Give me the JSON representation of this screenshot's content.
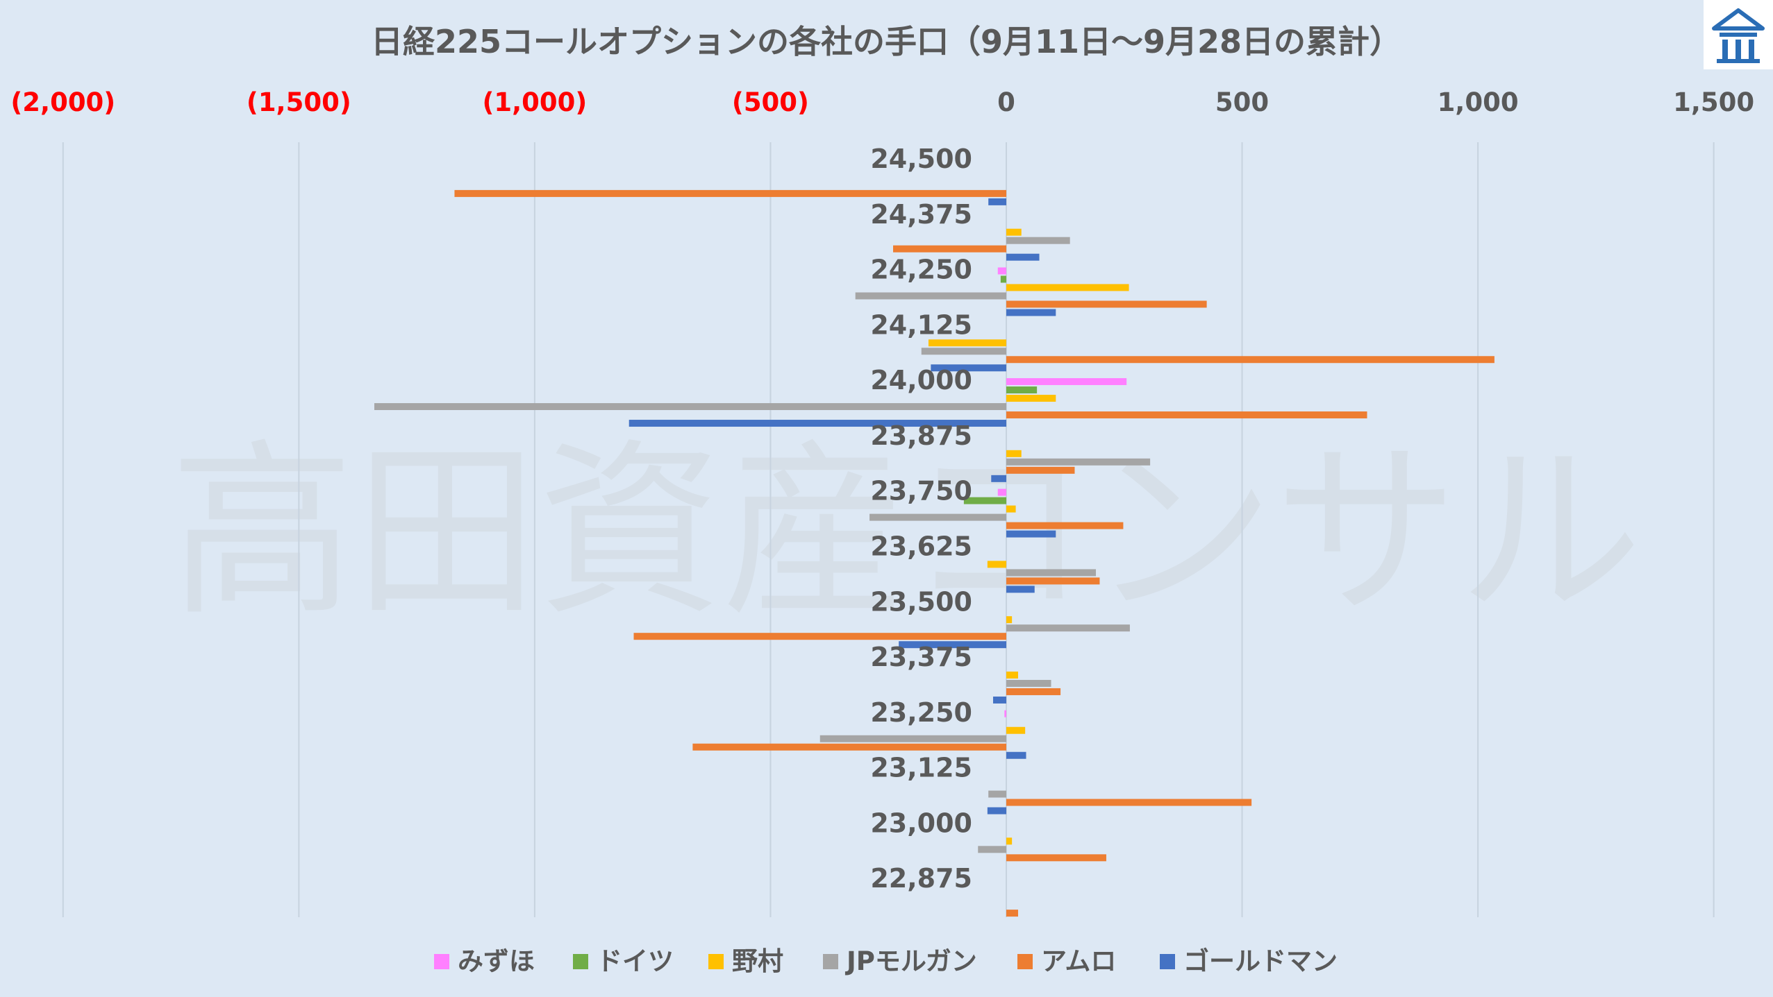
{
  "colors": {
    "みずほ": "#ff80ff",
    "ドイツ": "#70ad47",
    "野村": "#ffc000",
    "JPモルガン": "#a5a5a5",
    "アムロ": "#ed7d31",
    "ゴールドマン": "#4472c4",
    "negative_tick": "#ff0000",
    "positive_tick": "#595959",
    "grid": "#c7d3df"
  },
  "watermark": "高田資産コンサル",
  "logo_icon": "building-logo-icon",
  "chart_data": {
    "type": "bar",
    "orientation": "horizontal",
    "title": "日経225コールオプションの各社の手口（9月11日～9月28日の累計）",
    "categories": [
      "24,500",
      "24,375",
      "24,250",
      "24,125",
      "24,000",
      "23,875",
      "23,750",
      "23,625",
      "23,500",
      "23,375",
      "23,250",
      "23,125",
      "23,000",
      "22,875"
    ],
    "xlim": [
      -2000,
      1500
    ],
    "xticks": [
      {
        "value": -2000,
        "label": "(2,000)"
      },
      {
        "value": -1500,
        "label": "(1,500)"
      },
      {
        "value": -1000,
        "label": "(1,000)"
      },
      {
        "value": -500,
        "label": "(500)"
      },
      {
        "value": 0,
        "label": "0"
      },
      {
        "value": 500,
        "label": "500"
      },
      {
        "value": 1000,
        "label": "1,000"
      },
      {
        "value": 1500,
        "label": "1,500"
      }
    ],
    "grid": true,
    "legend_position": "bottom",
    "series": [
      {
        "name": "みずほ",
        "values": [
          0,
          0,
          -18,
          0,
          255,
          0,
          -18,
          0,
          0,
          0,
          -4,
          0,
          0,
          0
        ]
      },
      {
        "name": "ドイツ",
        "values": [
          0,
          0,
          -12,
          0,
          65,
          0,
          -90,
          0,
          0,
          0,
          0,
          0,
          0,
          0
        ]
      },
      {
        "name": "野村",
        "values": [
          0,
          32,
          260,
          -165,
          105,
          32,
          20,
          -40,
          12,
          25,
          40,
          0,
          12,
          0
        ]
      },
      {
        "name": "JPモルガン",
        "values": [
          0,
          135,
          -320,
          -180,
          -1340,
          305,
          -290,
          190,
          262,
          95,
          -395,
          -38,
          -60,
          0
        ]
      },
      {
        "name": "アムロ",
        "values": [
          -1170,
          -240,
          425,
          1035,
          765,
          145,
          248,
          198,
          -790,
          115,
          -665,
          520,
          212,
          25
        ]
      },
      {
        "name": "ゴールドマン",
        "values": [
          -38,
          70,
          105,
          -160,
          -800,
          -32,
          105,
          60,
          -228,
          -28,
          42,
          -40,
          0,
          0
        ]
      }
    ]
  }
}
